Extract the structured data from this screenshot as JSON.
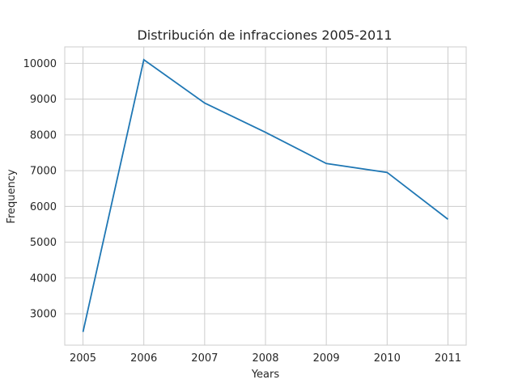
{
  "chart_data": {
    "type": "line",
    "title": "Distribución de infracciones 2005-2011",
    "xlabel": "Years",
    "ylabel": "Frequency",
    "x": [
      2005,
      2006,
      2007,
      2008,
      2009,
      2010,
      2011
    ],
    "series": [
      {
        "values": [
          2490,
          10100,
          8890,
          8070,
          7200,
          6950,
          5640
        ],
        "color": "#1f77b4"
      }
    ],
    "xlim": [
      2004.7,
      2011.3
    ],
    "ylim": [
      2120,
      10460
    ],
    "xticks": [
      "2005",
      "2006",
      "2007",
      "2008",
      "2009",
      "2010",
      "2011"
    ],
    "yticks": [
      3000,
      4000,
      5000,
      6000,
      7000,
      8000,
      9000,
      10000
    ],
    "ytick_labels": [
      "3000",
      "4000",
      "5000",
      "6000",
      "7000",
      "8000",
      "9000",
      "10000"
    ],
    "grid": true,
    "legend": "none"
  }
}
